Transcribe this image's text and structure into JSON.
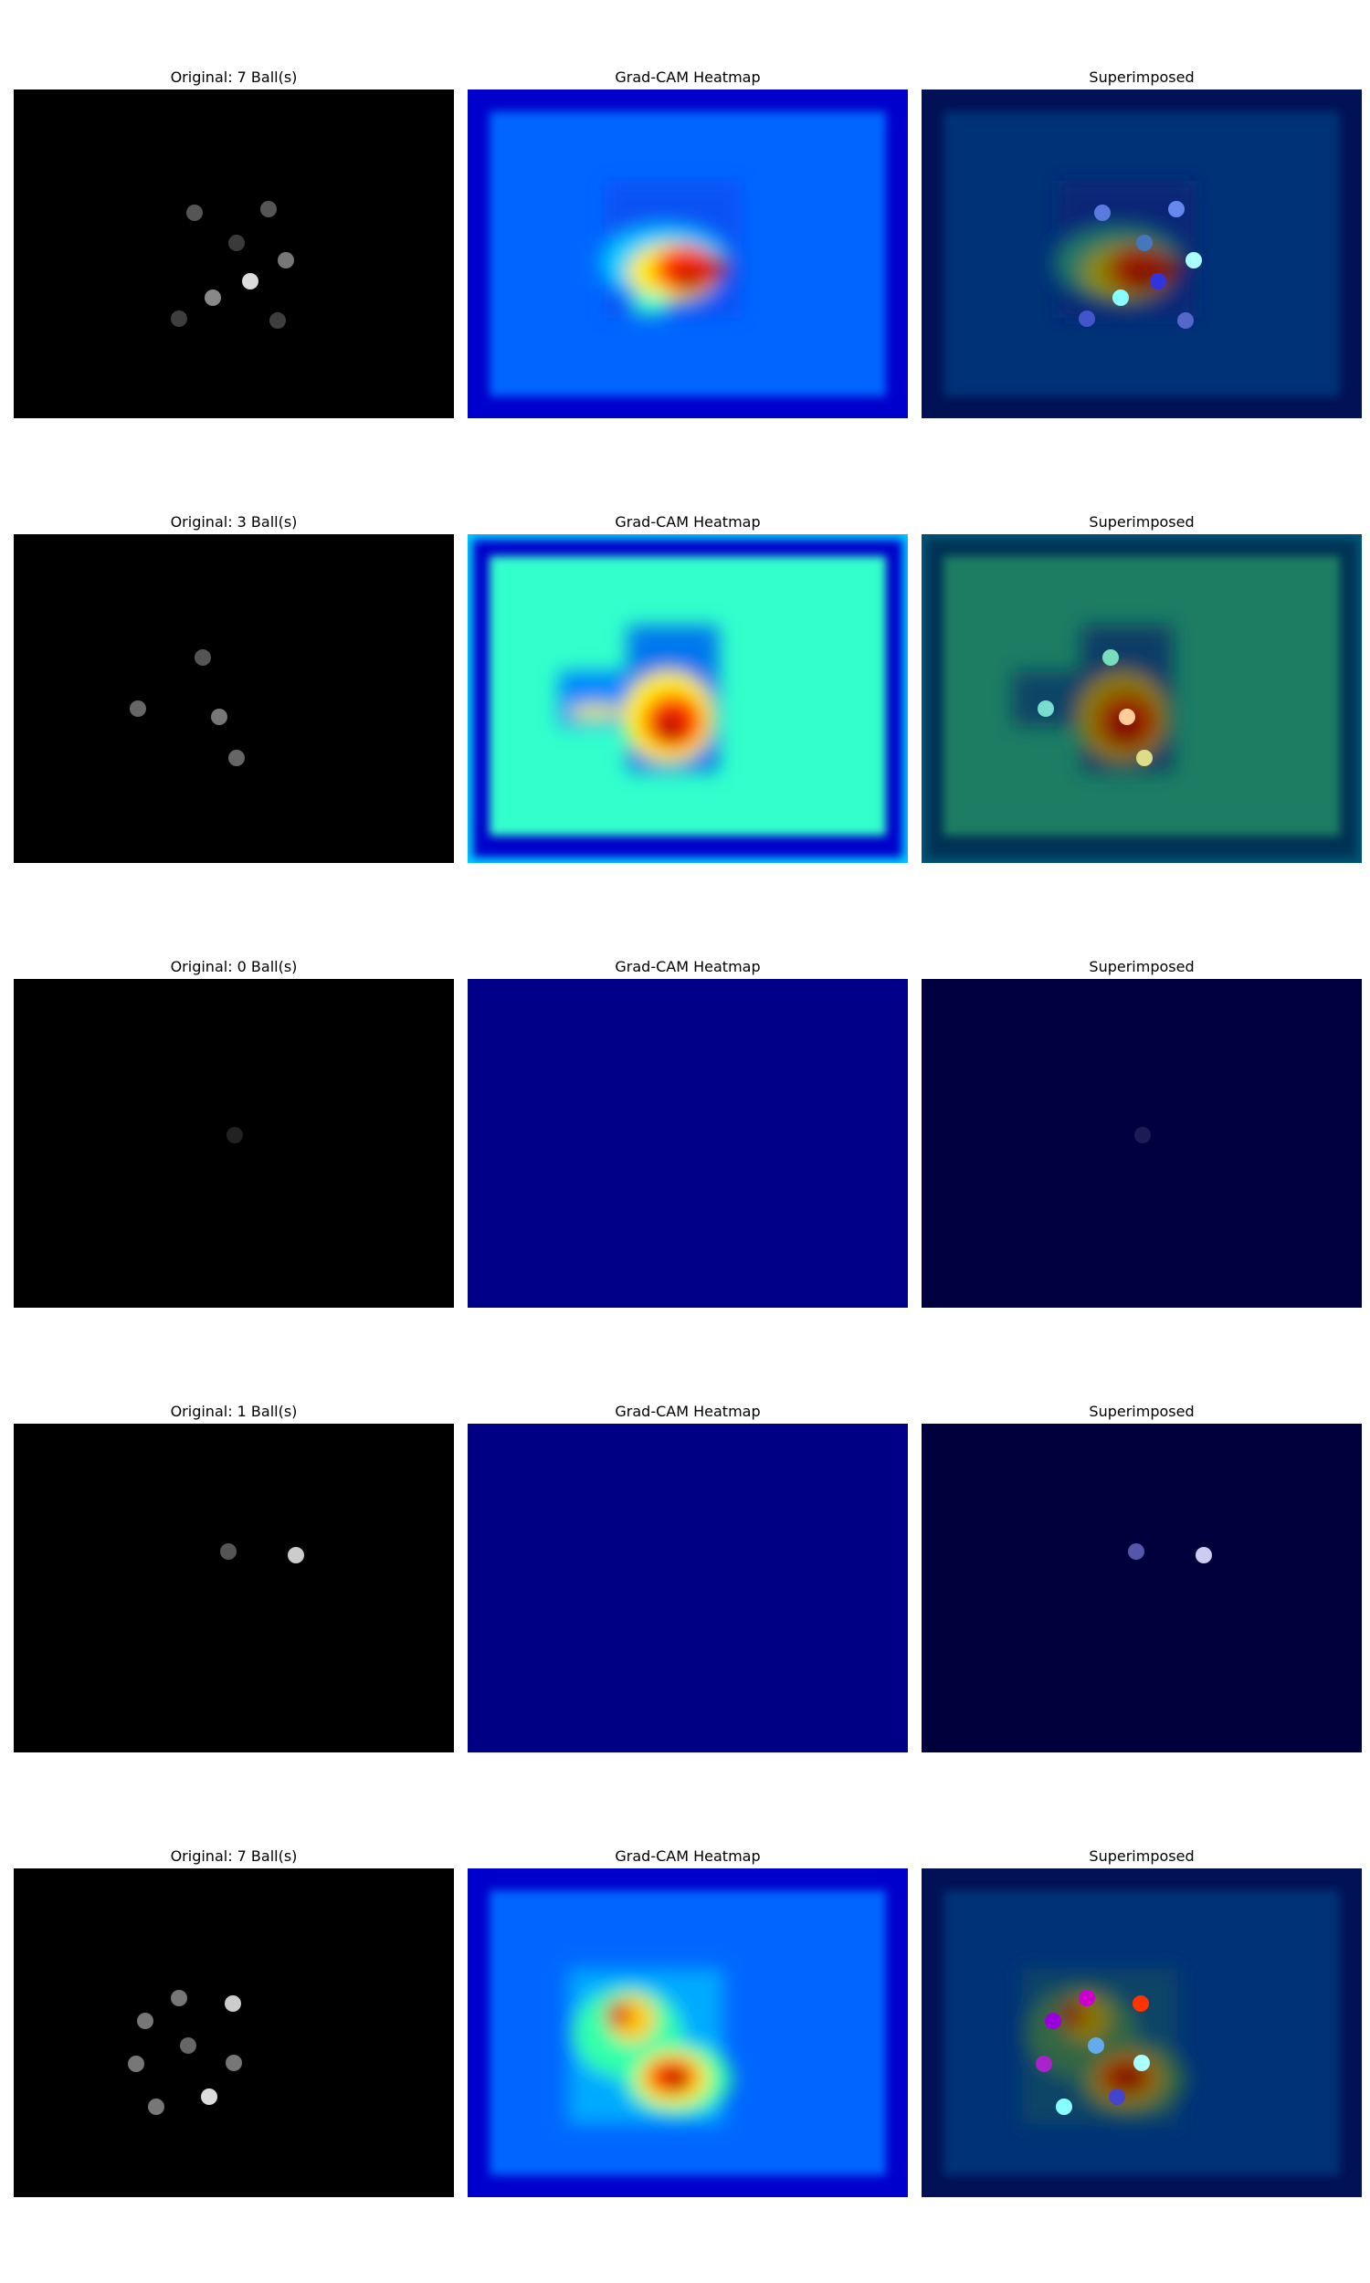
{
  "figure": {
    "rows": [
      {
        "original_title": "Original: 7 Ball(s)",
        "heatmap_title": "Grad-CAM Heatmap",
        "superimposed_title": "Superimposed",
        "heat_bg": "#0066ff",
        "heat_frame": "#0000cc",
        "super_bg": "#003377",
        "super_frame": "#001155"
      },
      {
        "original_title": "Original: 3 Ball(s)",
        "heatmap_title": "Grad-CAM Heatmap",
        "superimposed_title": "Superimposed",
        "heat_bg": "#33ffcc",
        "heat_frame": "#0000cc",
        "super_bg": "#1e7d64",
        "super_frame": "#003355"
      },
      {
        "original_title": "Original: 0 Ball(s)",
        "heatmap_title": "Grad-CAM Heatmap",
        "superimposed_title": "Superimposed",
        "heat_bg": "#000088",
        "heat_frame": "#000088",
        "super_bg": "#000040",
        "super_frame": "#000040"
      },
      {
        "original_title": "Original: 1 Ball(s)",
        "heatmap_title": "Grad-CAM Heatmap",
        "superimposed_title": "Superimposed",
        "heat_bg": "#000085",
        "heat_frame": "#000085",
        "super_bg": "#00003d",
        "super_frame": "#00003d"
      },
      {
        "original_title": "Original: 7 Ball(s)",
        "heatmap_title": "Grad-CAM Heatmap",
        "superimposed_title": "Superimposed",
        "heat_bg": "#0066ff",
        "heat_frame": "#0000cc",
        "super_bg": "#003377",
        "super_frame": "#001155"
      }
    ]
  }
}
